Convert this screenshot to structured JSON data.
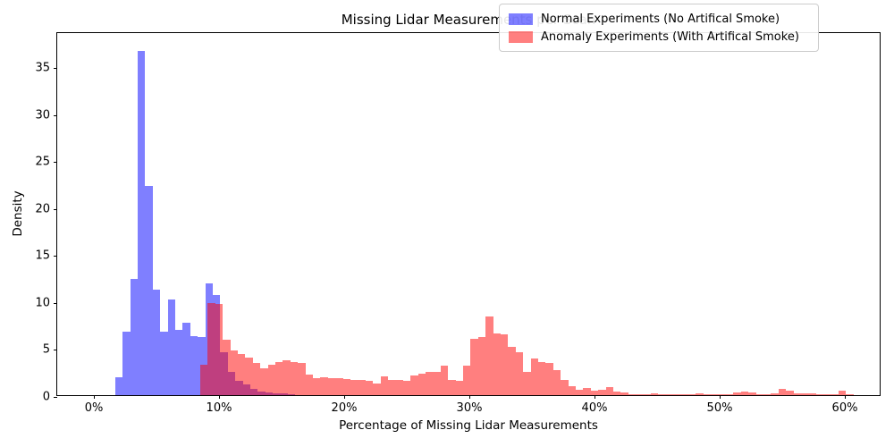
{
  "chart_data": {
    "type": "bar",
    "subtype": "overlaid_density_histogram",
    "title": "Missing Lidar Measurements per Scan",
    "xlabel": "Percentage of Missing Lidar Measurements",
    "ylabel": "Density",
    "grid": false,
    "legend_position": "upper right",
    "x_ticks": {
      "labels": [
        "0%",
        "10%",
        "20%",
        "30%",
        "40%",
        "50%",
        "60%"
      ],
      "values": [
        0,
        10,
        20,
        30,
        40,
        50,
        60
      ]
    },
    "y_ticks": {
      "labels": [
        "0",
        "5",
        "10",
        "15",
        "20",
        "25",
        "30",
        "35"
      ],
      "values": [
        0,
        5,
        10,
        15,
        20,
        25,
        30,
        35
      ]
    },
    "xlim_percent": [
      -2.9,
      63.0
    ],
    "ylim": [
      0,
      38.7
    ],
    "overlap_color_hex": "#BF4080",
    "series": [
      {
        "name": "Normal Experiments (No Artifical Smoke)",
        "color": "#0000FF",
        "alpha": 0.5,
        "legend_swatch_hex": "#8080FF",
        "bin_start_percent": 1.7,
        "bin_width_percent": 0.6,
        "densities": [
          1.9,
          6.8,
          12.4,
          36.6,
          22.3,
          11.2,
          6.8,
          10.2,
          6.9,
          7.7,
          6.3,
          6.2,
          11.9,
          10.7,
          4.6,
          2.5,
          1.5,
          1.1,
          0.7,
          0.4,
          0.3,
          0.2,
          0.15,
          0.1
        ]
      },
      {
        "name": "Anomaly Experiments (With Artifical Smoke)",
        "color": "#FF0000",
        "alpha": 0.5,
        "legend_swatch_hex": "#FF8080",
        "bin_start_percent": 8.5,
        "bin_width_percent": 0.6,
        "densities": [
          3.2,
          9.8,
          9.7,
          5.9,
          4.8,
          4.4,
          4.0,
          3.4,
          2.9,
          3.2,
          3.5,
          3.7,
          3.5,
          3.4,
          2.2,
          1.8,
          1.9,
          1.8,
          1.8,
          1.7,
          1.6,
          1.6,
          1.5,
          1.2,
          2.0,
          1.6,
          1.6,
          1.5,
          2.1,
          2.3,
          2.5,
          2.5,
          3.1,
          1.6,
          1.5,
          3.1,
          6.0,
          6.2,
          8.4,
          6.6,
          6.5,
          5.1,
          4.6,
          2.5,
          3.9,
          3.5,
          3.4,
          2.7,
          1.6,
          1.0,
          0.6,
          0.8,
          0.5,
          0.6,
          0.9,
          0.4,
          0.25,
          0.1,
          0.05,
          0.1,
          0.2,
          0.05,
          0.05,
          0.05,
          0.05,
          0.05,
          0.2,
          0.05,
          0.05,
          0.05,
          0.05,
          0.3,
          0.35,
          0.3,
          0.1,
          0.05,
          0.2,
          0.65,
          0.5,
          0.15,
          0.2,
          0.2,
          0.1,
          0.05,
          0.1,
          0.45,
          0.05
        ]
      }
    ]
  }
}
